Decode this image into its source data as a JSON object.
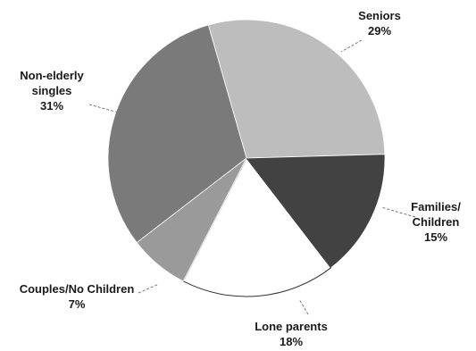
{
  "chart_data": {
    "type": "pie",
    "title": "",
    "start_angle_deg": -106,
    "slices": [
      {
        "label_lines": [
          "Seniors"
        ],
        "value_label": "29%",
        "value": 29,
        "color": "#bdbdbd"
      },
      {
        "label_lines": [
          "Families/",
          "Children"
        ],
        "value_label": "15%",
        "value": 15,
        "color": "#424242"
      },
      {
        "label_lines": [
          "Lone parents"
        ],
        "value_label": "18%",
        "value": 18,
        "color": "#ffffff"
      },
      {
        "label_lines": [
          "Couples/No Children"
        ],
        "value_label": "7%",
        "value": 7,
        "color": "#9a9a9a"
      },
      {
        "label_lines": [
          "Non-elderly",
          "singles"
        ],
        "value_label": "31%",
        "value": 31,
        "color": "#7a7a7a"
      }
    ]
  }
}
